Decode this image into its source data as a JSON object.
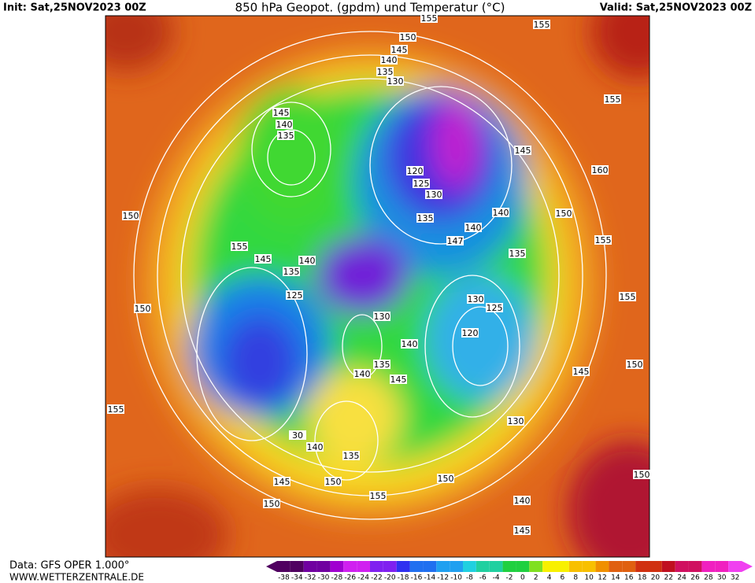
{
  "header": {
    "init": "Init: Sat,25NOV2023 00Z",
    "title": "850 hPa Geopot. (gpdm) und Temperatur (°C)",
    "valid": "Valid: Sat,25NOV2023 00Z"
  },
  "footer": {
    "data": "Data: GFS OPER 1.000°",
    "site": "WWW.WETTERZENTRALE.DE"
  },
  "colorbar": {
    "ticks": [
      -38,
      -34,
      -32,
      -30,
      -28,
      -26,
      -24,
      -22,
      -20,
      -18,
      -16,
      -14,
      -12,
      -10,
      -8,
      -6,
      -4,
      -2,
      0,
      2,
      4,
      6,
      8,
      10,
      12,
      14,
      16,
      18,
      20,
      22,
      24,
      26,
      28,
      30,
      32
    ]
  },
  "contour_labels": [
    155,
    155,
    150,
    145,
    140,
    135,
    130,
    155,
    145,
    140,
    135,
    145,
    160,
    120,
    125,
    130,
    140,
    150,
    150,
    135,
    140,
    155,
    155,
    145,
    147,
    135,
    140,
    135,
    125,
    130,
    125,
    150,
    155,
    130,
    120,
    140,
    150,
    145,
    135,
    140,
    145,
    155,
    130,
    30,
    140,
    135,
    150,
    145,
    150,
    150,
    155,
    150,
    140,
    145
  ]
}
